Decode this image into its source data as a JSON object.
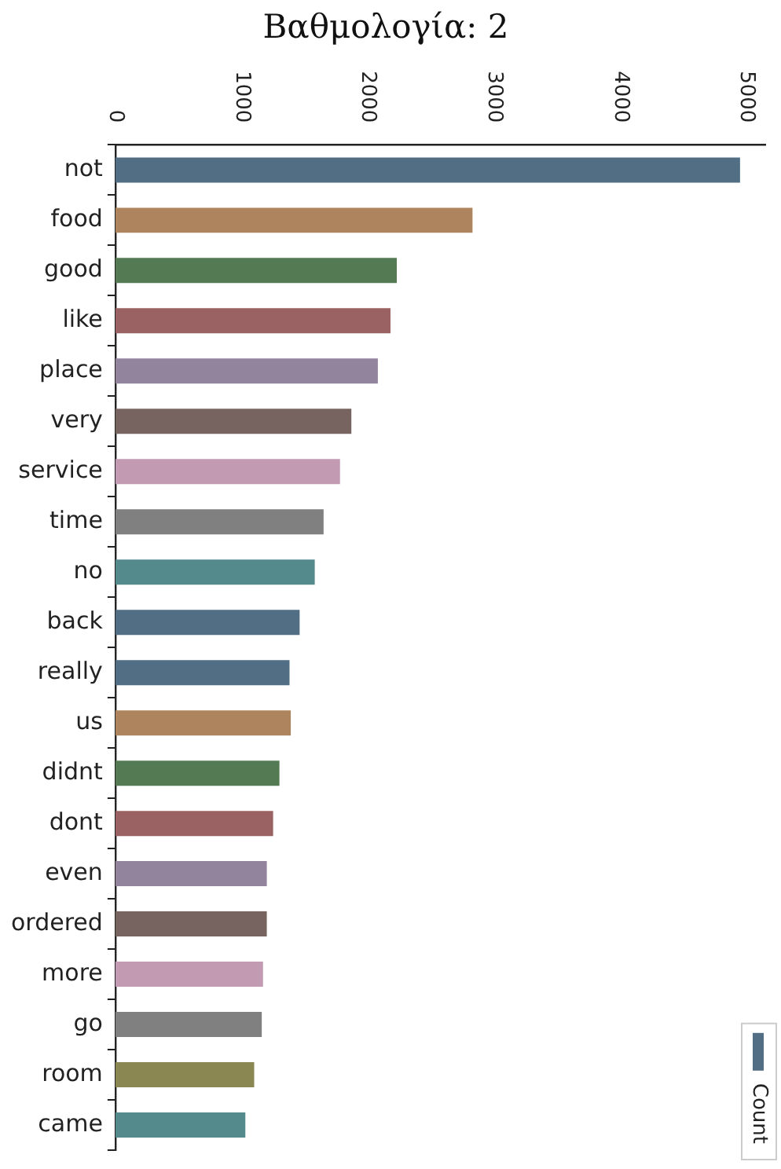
{
  "chart_data": {
    "type": "bar",
    "orientation": "horizontal",
    "title": "Βαθμολογία: 2",
    "categories": [
      "not",
      "food",
      "good",
      "like",
      "place",
      "very",
      "service",
      "time",
      "no",
      "back",
      "really",
      "us",
      "didnt",
      "dont",
      "even",
      "ordered",
      "more",
      "go",
      "room",
      "came"
    ],
    "series": [
      {
        "name": "Count",
        "color": "#516e84",
        "colors": [
          "#516e84",
          "#ad845d",
          "#537a53",
          "#9a6262",
          "#93849e",
          "#776461",
          "#c29bb3",
          "#808080",
          "#548a8c",
          "#516e84",
          "#516e84",
          "#ad845d",
          "#537a53",
          "#9a6262",
          "#93849e",
          "#776461",
          "#c29bb3",
          "#808080",
          "#8a8752",
          "#548a8c"
        ],
        "values": [
          4950,
          2830,
          2230,
          2180,
          2080,
          1870,
          1780,
          1650,
          1580,
          1460,
          1380,
          1390,
          1300,
          1250,
          1200,
          1200,
          1170,
          1160,
          1100,
          1030
        ]
      }
    ],
    "xlim": [
      0,
      5150
    ],
    "xticks": [
      0,
      1000,
      2000,
      3000,
      4000,
      5000
    ],
    "grid": false,
    "legend": "bottom right"
  }
}
